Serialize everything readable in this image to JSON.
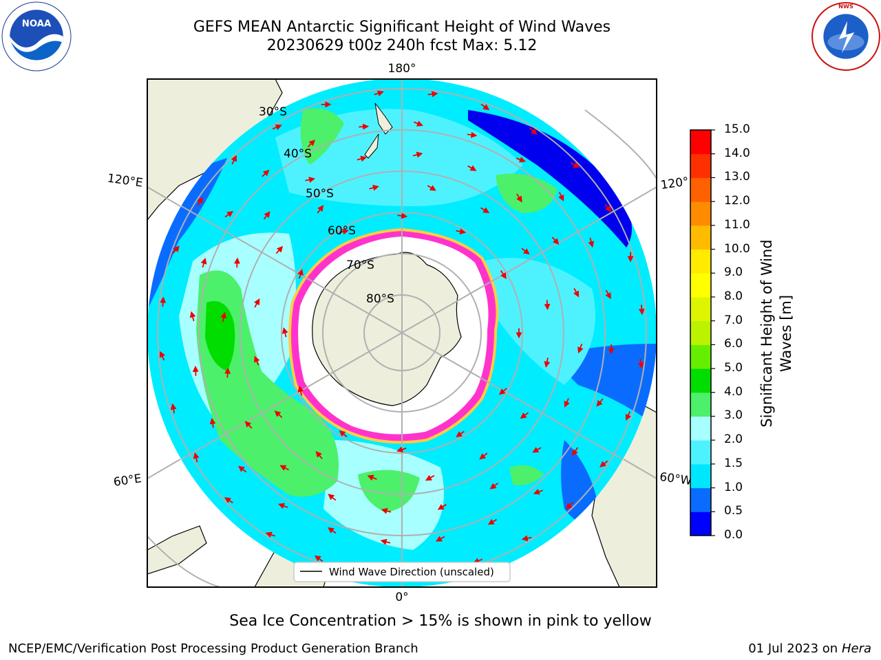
{
  "header": {
    "title_line1": "GEFS MEAN Antarctic Significant Height of Wind Waves",
    "title_line2": "20230629 t00z 240h fcst   Max: 5.12"
  },
  "logos": {
    "left": "NOAA",
    "right": "NATIONAL WEATHER SERVICE"
  },
  "map": {
    "projection": "south-polar-stereographic",
    "longitude_labels": [
      "180°",
      "120°E",
      "120°",
      "60°E",
      "60°W",
      "0°"
    ],
    "latitude_labels": [
      "30°S",
      "40°S",
      "50°S",
      "60°S",
      "70°S",
      "80°S"
    ],
    "legend_label": "Wind Wave Direction (unscaled)"
  },
  "colorbar": {
    "label": "Significant Height of Wind Waves [m]",
    "ticks": [
      "0.0",
      "0.5",
      "1.0",
      "1.5",
      "2.0",
      "3.0",
      "4.0",
      "5.0",
      "6.0",
      "7.0",
      "8.0",
      "9.0",
      "10.0",
      "11.0",
      "12.0",
      "13.0",
      "14.0",
      "15.0"
    ],
    "colors": [
      "#0000ff",
      "#0a6cff",
      "#00e6ff",
      "#4ef2ff",
      "#a8ffff",
      "#4cf06a",
      "#00dd00",
      "#66ee00",
      "#bbf200",
      "#ddf500",
      "#ffff00",
      "#ffea00",
      "#ffbb00",
      "#ff8c00",
      "#ff6000",
      "#ff3000",
      "#ff0000"
    ]
  },
  "footer": {
    "note": "Sea Ice Concentration > 15% is shown in pink to yellow",
    "credit": "NCEP/EMC/Verification Post Processing Product Generation Branch",
    "date": "01 Jul 2023 on",
    "machine": "Hera"
  }
}
